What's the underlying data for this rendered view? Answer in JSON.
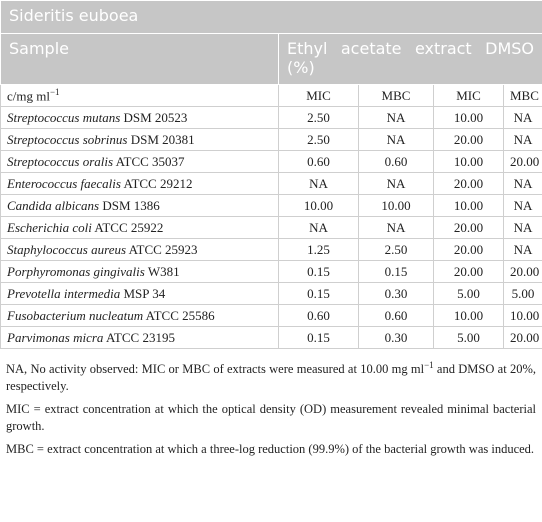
{
  "table": {
    "title": "Sideritis euboea",
    "header": {
      "sample": "Sample",
      "extract": "Ethyl acetate extract DMSO (%)"
    },
    "unit": {
      "text": "c/mg ml",
      "sup": "−1"
    },
    "subheaders": [
      "MIC",
      "MBC",
      "MIC",
      "MBC"
    ],
    "rows": [
      {
        "species": "Streptococcus mutans",
        "strain": "DSM 20523",
        "cells": [
          "2.50",
          "NA",
          "10.00",
          "NA"
        ]
      },
      {
        "species": "Streptococcus sobrinus",
        "strain": "DSM 20381",
        "cells": [
          "2.50",
          "NA",
          "20.00",
          "NA"
        ]
      },
      {
        "species": "Streptococcus oralis",
        "strain": "ATCC 35037",
        "cells": [
          "0.60",
          "0.60",
          "10.00",
          "20.00"
        ]
      },
      {
        "species": "Enterococcus faecalis",
        "strain": "ATCC 29212",
        "cells": [
          "NA",
          "NA",
          "20.00",
          "NA"
        ]
      },
      {
        "species": "Candida albicans",
        "strain": "DSM 1386",
        "cells": [
          "10.00",
          "10.00",
          "10.00",
          "NA"
        ]
      },
      {
        "species": "Escherichia coli",
        "strain": "ATCC 25922",
        "cells": [
          "NA",
          "NA",
          "20.00",
          "NA"
        ]
      },
      {
        "species": "Staphylococcus aureus",
        "strain": "ATCC 25923",
        "cells": [
          "1.25",
          "2.50",
          "20.00",
          "NA"
        ]
      },
      {
        "species": "Porphyromonas gingivalis",
        "strain": "W381",
        "cells": [
          "0.15",
          "0.15",
          "20.00",
          "20.00"
        ]
      },
      {
        "species": "Prevotella intermedia",
        "strain": "MSP 34",
        "cells": [
          "0.15",
          "0.30",
          "5.00",
          "5.00"
        ]
      },
      {
        "species": "Fusobacterium nucleatum",
        "strain": "ATCC 25586",
        "cells": [
          "0.60",
          "0.60",
          "10.00",
          "10.00"
        ]
      },
      {
        "species": "Parvimonas micra",
        "strain": "ATCC 23195",
        "cells": [
          "0.15",
          "0.30",
          "5.00",
          "20.00"
        ]
      }
    ]
  },
  "footnotes": [
    {
      "before": "NA, No activity observed: MIC or MBC of extracts were measured at 10.00 mg ml",
      "sup": "−1",
      "after": " and DMSO at 20%, respectively."
    },
    {
      "text": "MIC = extract concentration at which the optical density (OD) measurement revealed minimal bacterial growth."
    },
    {
      "text": "MBC = extract concentration at which a three-log reduction (99.9%) of the bacterial growth was induced."
    }
  ]
}
